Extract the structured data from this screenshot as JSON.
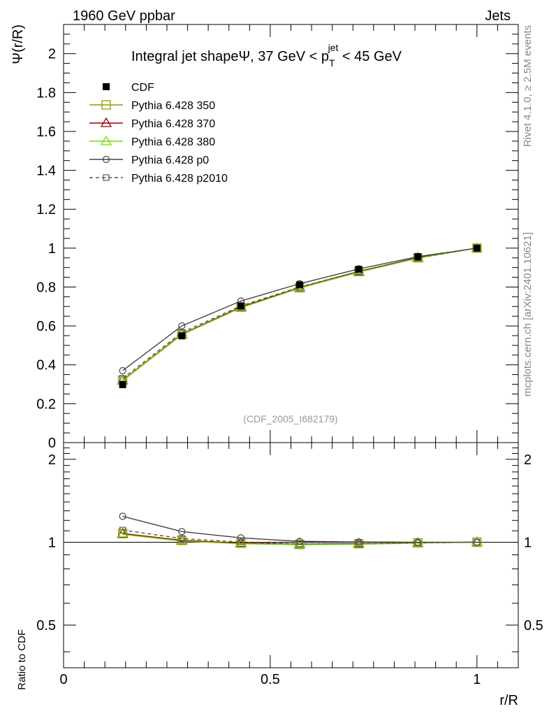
{
  "header": {
    "left": "1960 GeV ppbar",
    "right": "Jets"
  },
  "side_labels": {
    "rivet": "Rivet 4.1.0, ≥ 2.5M events",
    "mcplots": "mcplots.cern.ch [arXiv:2401.10621]"
  },
  "chart_data": [
    {
      "type": "line",
      "panel": "main",
      "title_parts": {
        "prefix": "Integral jet shapeΨ, 37 GeV < p",
        "sub": "T",
        "sup": "jet",
        "suffix": " < 45 GeV"
      },
      "ylabel": "Ψ(r/R)",
      "xlabel": "r/R",
      "annotation": "(CDF_2005_I682179)",
      "xlim": [
        0,
        1.1
      ],
      "ylim": [
        0,
        2.15
      ],
      "x_ticks": [
        "0",
        "0.5",
        "1"
      ],
      "y_ticks": [
        "0",
        "0.2",
        "0.4",
        "0.6",
        "0.8",
        "1",
        "1.2",
        "1.4",
        "1.6",
        "1.8",
        "2"
      ],
      "x": [
        0.143,
        0.286,
        0.429,
        0.571,
        0.714,
        0.857,
        1.0
      ],
      "series": [
        {
          "name": "CDF",
          "color": "#000000",
          "marker": "filled-square",
          "line": "none",
          "values": [
            0.298,
            0.549,
            0.702,
            0.811,
            0.891,
            0.956,
            1.0
          ]
        },
        {
          "name": "Pythia 6.428 350",
          "color": "#999900",
          "marker": "open-square",
          "line": "solid",
          "values": [
            0.321,
            0.558,
            0.696,
            0.796,
            0.879,
            0.95,
            1.0
          ]
        },
        {
          "name": "Pythia 6.428 370",
          "color": "#990000",
          "marker": "open-triangle",
          "line": "solid",
          "values": [
            0.32,
            0.557,
            0.697,
            0.797,
            0.88,
            0.951,
            1.0
          ]
        },
        {
          "name": "Pythia 6.428 380",
          "color": "#77dd00",
          "marker": "open-triangle",
          "line": "solid",
          "values": [
            0.318,
            0.554,
            0.693,
            0.794,
            0.876,
            0.948,
            1.0
          ]
        },
        {
          "name": "Pythia 6.428 p0",
          "color": "#444444",
          "marker": "open-circle",
          "line": "solid",
          "values": [
            0.37,
            0.6,
            0.728,
            0.817,
            0.893,
            0.956,
            1.0
          ]
        },
        {
          "name": "Pythia 6.428 p2010",
          "color": "#555555",
          "marker": "open-small-square",
          "line": "dashed",
          "values": [
            0.33,
            0.566,
            0.703,
            0.8,
            0.881,
            0.951,
            1.0
          ]
        }
      ]
    },
    {
      "type": "line",
      "panel": "ratio",
      "ylabel": "Ratio to CDF",
      "xlabel": "r/R",
      "xlim": [
        0,
        1.1
      ],
      "ylim": [
        0.35,
        2.3
      ],
      "y_ticks": [
        "0.5",
        "1",
        "2"
      ],
      "x": [
        0.143,
        0.286,
        0.429,
        0.571,
        0.714,
        0.857,
        1.0
      ],
      "series": [
        {
          "name": "Pythia 6.428 350",
          "values": [
            1.077,
            1.016,
            0.991,
            0.981,
            0.987,
            0.994,
            1.0
          ]
        },
        {
          "name": "Pythia 6.428 370",
          "values": [
            1.074,
            1.015,
            0.993,
            0.983,
            0.988,
            0.995,
            1.0
          ]
        },
        {
          "name": "Pythia 6.428 380",
          "values": [
            1.067,
            1.009,
            0.987,
            0.979,
            0.983,
            0.992,
            1.0
          ]
        },
        {
          "name": "Pythia 6.428 p0",
          "values": [
            1.242,
            1.093,
            1.037,
            1.007,
            1.002,
            1.0,
            1.0
          ]
        },
        {
          "name": "Pythia 6.428 p2010",
          "values": [
            1.107,
            1.031,
            1.001,
            0.986,
            0.989,
            0.995,
            1.0
          ]
        }
      ]
    }
  ]
}
